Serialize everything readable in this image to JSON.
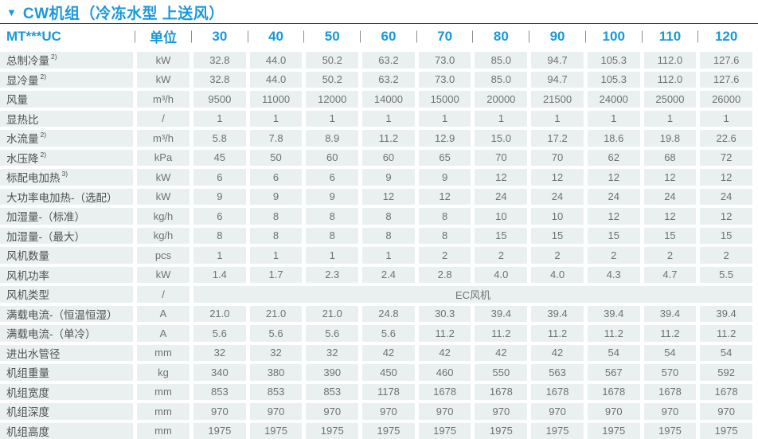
{
  "title": {
    "marker": "▼",
    "text": "CW机组（冷冻水型 上送风）"
  },
  "table": {
    "model_header": "MT***UC",
    "unit_header": "单位",
    "model_columns": [
      "30",
      "40",
      "50",
      "60",
      "70",
      "80",
      "90",
      "100",
      "110",
      "120"
    ],
    "rows": [
      {
        "label": "总制冷量",
        "sup": "2)",
        "unit": "kW",
        "values": [
          "32.8",
          "44.0",
          "50.2",
          "63.2",
          "73.0",
          "85.0",
          "94.7",
          "105.3",
          "112.0",
          "127.6"
        ]
      },
      {
        "label": "显冷量",
        "sup": "2)",
        "unit": "kW",
        "values": [
          "32.8",
          "44.0",
          "50.2",
          "63.2",
          "73.0",
          "85.0",
          "94.7",
          "105.3",
          "112.0",
          "127.6"
        ]
      },
      {
        "label": "风量",
        "unit": "m³/h",
        "values": [
          "9500",
          "11000",
          "12000",
          "14000",
          "15000",
          "20000",
          "21500",
          "24000",
          "25000",
          "26000"
        ]
      },
      {
        "label": "显热比",
        "unit": "/",
        "values": [
          "1",
          "1",
          "1",
          "1",
          "1",
          "1",
          "1",
          "1",
          "1",
          "1"
        ]
      },
      {
        "label": "水流量",
        "sup": "2)",
        "unit": "m³/h",
        "values": [
          "5.8",
          "7.8",
          "8.9",
          "11.2",
          "12.9",
          "15.0",
          "17.2",
          "18.6",
          "19.8",
          "22.6"
        ]
      },
      {
        "label": "水压降",
        "sup": "2)",
        "unit": "kPa",
        "values": [
          "45",
          "50",
          "60",
          "60",
          "65",
          "70",
          "70",
          "62",
          "68",
          "72"
        ]
      },
      {
        "label": "标配电加热",
        "sup": "3)",
        "unit": "kW",
        "values": [
          "6",
          "6",
          "6",
          "9",
          "9",
          "12",
          "12",
          "12",
          "12",
          "12"
        ]
      },
      {
        "label": "大功率电加热-（选配）",
        "unit": "kW",
        "values": [
          "9",
          "9",
          "9",
          "12",
          "12",
          "24",
          "24",
          "24",
          "24",
          "24"
        ]
      },
      {
        "label": "加湿量-（标准）",
        "unit": "kg/h",
        "values": [
          "6",
          "8",
          "8",
          "8",
          "8",
          "10",
          "10",
          "12",
          "12",
          "12"
        ]
      },
      {
        "label": "加湿量-（最大）",
        "unit": "kg/h",
        "values": [
          "8",
          "8",
          "8",
          "8",
          "8",
          "15",
          "15",
          "15",
          "15",
          "15"
        ]
      },
      {
        "label": "风机数量",
        "unit": "pcs",
        "values": [
          "1",
          "1",
          "1",
          "1",
          "2",
          "2",
          "2",
          "2",
          "2",
          "2"
        ]
      },
      {
        "label": "风机功率",
        "unit": "kW",
        "values": [
          "1.4",
          "1.7",
          "2.3",
          "2.4",
          "2.8",
          "4.0",
          "4.0",
          "4.3",
          "4.7",
          "5.5"
        ]
      },
      {
        "label": "风机类型",
        "unit": "/",
        "merged": "EC风机"
      },
      {
        "label": "满载电流-（恒温恒湿）",
        "unit": "A",
        "values": [
          "21.0",
          "21.0",
          "21.0",
          "24.8",
          "30.3",
          "39.4",
          "39.4",
          "39.4",
          "39.4",
          "39.4"
        ]
      },
      {
        "label": "满载电流-（单冷）",
        "unit": "A",
        "values": [
          "5.6",
          "5.6",
          "5.6",
          "5.6",
          "11.2",
          "11.2",
          "11.2",
          "11.2",
          "11.2",
          "11.2"
        ]
      },
      {
        "label": "进出水管径",
        "unit": "mm",
        "values": [
          "32",
          "32",
          "32",
          "42",
          "42",
          "42",
          "42",
          "54",
          "54",
          "54"
        ]
      },
      {
        "label": "机组重量",
        "unit": "kg",
        "values": [
          "340",
          "380",
          "390",
          "450",
          "460",
          "550",
          "563",
          "567",
          "570",
          "592"
        ]
      },
      {
        "label": "机组宽度",
        "unit": "mm",
        "values": [
          "853",
          "853",
          "853",
          "1178",
          "1678",
          "1678",
          "1678",
          "1678",
          "1678",
          "1678"
        ]
      },
      {
        "label": "机组深度",
        "unit": "mm",
        "values": [
          "970",
          "970",
          "970",
          "970",
          "970",
          "970",
          "970",
          "970",
          "970",
          "970"
        ]
      },
      {
        "label": "机组高度",
        "unit": "mm",
        "values": [
          "1975",
          "1975",
          "1975",
          "1975",
          "1975",
          "1975",
          "1975",
          "1975",
          "1975",
          "1975"
        ]
      }
    ]
  },
  "colors": {
    "accent_blue": "#1899DB",
    "cell_bg": "#EAF0F0",
    "cell_text": "#6E7173",
    "label_text": "#4D4F51",
    "header_divider": "#8A8D90",
    "title_rule": "#3F4041"
  }
}
